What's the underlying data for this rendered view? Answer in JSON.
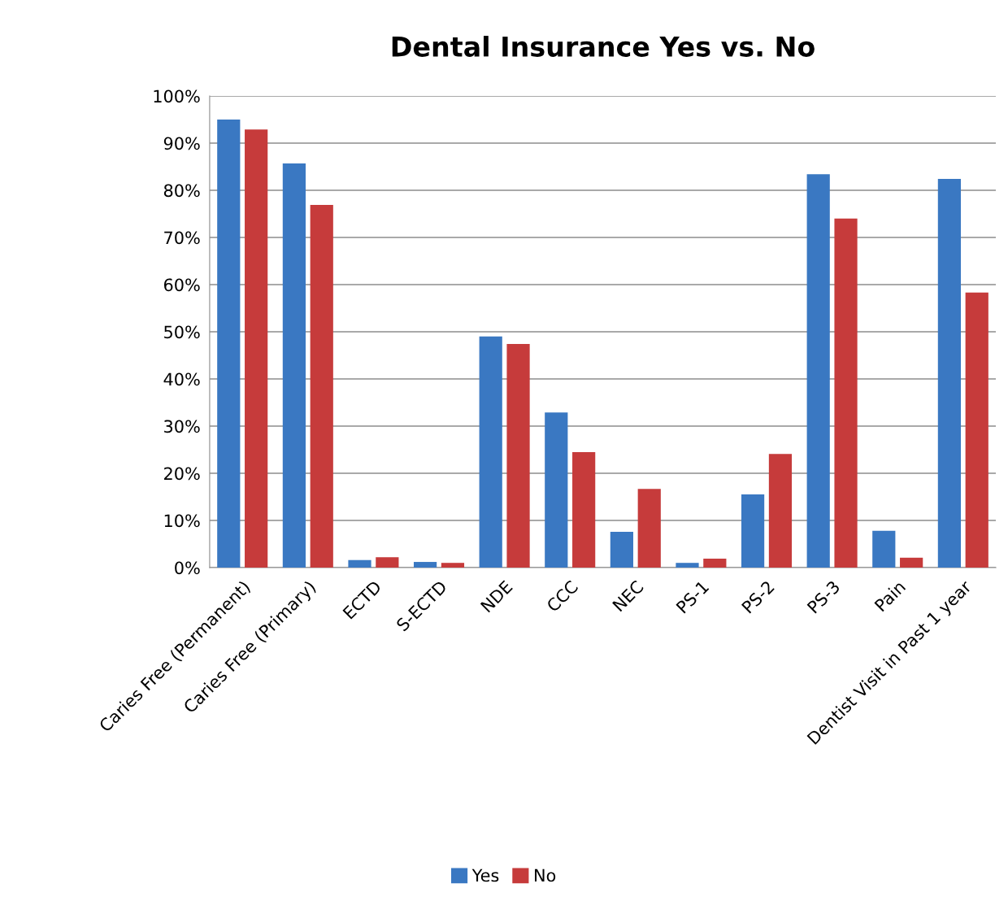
{
  "chart_data": {
    "type": "bar",
    "title": "Dental Insurance Yes vs. No",
    "categories": [
      "Caries Free (Permanent)",
      "Caries Free (Primary)",
      "ECTD",
      "S-ECTD",
      "NDE",
      "CCC",
      "NEC",
      "PS-1",
      "PS-2",
      "PS-3",
      "Pain",
      "Dentist Visit in Past 1 year"
    ],
    "series": [
      {
        "name": "Yes",
        "color": "#3a78c2",
        "values": [
          95.0,
          85.7,
          1.6,
          1.2,
          49.0,
          32.9,
          7.6,
          1.0,
          15.5,
          83.4,
          7.8,
          82.4
        ]
      },
      {
        "name": "No",
        "color": "#c63b3b",
        "values": [
          92.9,
          76.9,
          2.2,
          1.0,
          47.4,
          24.5,
          16.7,
          1.9,
          24.1,
          74.0,
          2.1,
          58.3
        ]
      }
    ],
    "ylim": [
      0,
      100
    ],
    "yticks": [
      {
        "value": 0,
        "label": "0%"
      },
      {
        "value": 10,
        "label": "10%"
      },
      {
        "value": 20,
        "label": "20%"
      },
      {
        "value": 30,
        "label": "30%"
      },
      {
        "value": 40,
        "label": "40%"
      },
      {
        "value": 50,
        "label": "50%"
      },
      {
        "value": 60,
        "label": "60%"
      },
      {
        "value": 70,
        "label": "70%"
      },
      {
        "value": 80,
        "label": "80%"
      },
      {
        "value": 90,
        "label": "90%"
      },
      {
        "value": 100,
        "label": "100%"
      }
    ],
    "grid": "y",
    "legend": "bottom"
  }
}
